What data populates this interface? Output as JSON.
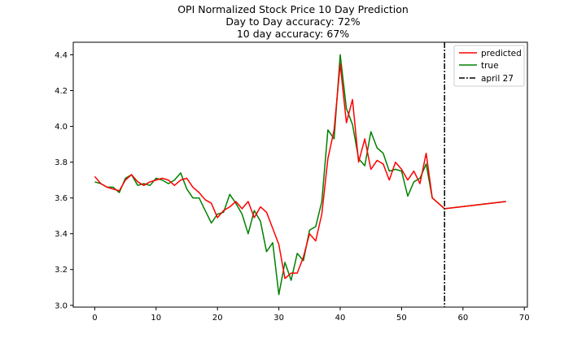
{
  "chart_data": {
    "type": "line",
    "title_lines": [
      "OPI Normalized Stock Price 10 Day Prediction",
      "Day to Day accuracy: 72%",
      "10 day accuracy: 67%"
    ],
    "xlim": [
      -3.5,
      70.5
    ],
    "ylim": [
      2.99,
      4.47
    ],
    "x_ticks": [
      0,
      10,
      20,
      30,
      40,
      50,
      60,
      70
    ],
    "y_ticks": [
      3.0,
      3.2,
      3.4,
      3.6,
      3.8,
      4.0,
      4.2,
      4.4
    ],
    "x_tick_labels": [
      "0",
      "10",
      "20",
      "30",
      "40",
      "50",
      "60",
      "70"
    ],
    "y_tick_labels": [
      "3.0",
      "3.2",
      "3.4",
      "3.6",
      "3.8",
      "4.0",
      "4.2",
      "4.4"
    ],
    "series": [
      {
        "name": "predicted",
        "color": "#ff0000",
        "x": [
          0,
          1,
          2,
          3,
          4,
          5,
          6,
          7,
          8,
          9,
          10,
          11,
          12,
          13,
          14,
          15,
          16,
          17,
          18,
          19,
          20,
          21,
          22,
          23,
          24,
          25,
          26,
          27,
          28,
          29,
          30,
          31,
          32,
          33,
          34,
          35,
          36,
          37,
          38,
          39,
          40,
          41,
          42,
          43,
          44,
          45,
          46,
          47,
          48,
          49,
          50,
          51,
          52,
          53,
          54,
          55,
          56,
          57,
          67
        ],
        "y": [
          3.72,
          3.68,
          3.66,
          3.65,
          3.64,
          3.7,
          3.73,
          3.69,
          3.67,
          3.69,
          3.7,
          3.71,
          3.7,
          3.67,
          3.7,
          3.71,
          3.66,
          3.63,
          3.59,
          3.57,
          3.49,
          3.53,
          3.55,
          3.58,
          3.54,
          3.58,
          3.49,
          3.55,
          3.52,
          3.43,
          3.34,
          3.15,
          3.18,
          3.18,
          3.27,
          3.4,
          3.36,
          3.51,
          3.82,
          3.98,
          4.35,
          4.02,
          4.15,
          3.8,
          3.93,
          3.76,
          3.81,
          3.79,
          3.7,
          3.8,
          3.76,
          3.7,
          3.75,
          3.68,
          3.85,
          3.6,
          3.57,
          3.54,
          3.58
        ]
      },
      {
        "name": "true",
        "color": "#008000",
        "x": [
          0,
          1,
          2,
          3,
          4,
          5,
          6,
          7,
          8,
          9,
          10,
          11,
          12,
          13,
          14,
          15,
          16,
          17,
          18,
          19,
          20,
          21,
          22,
          23,
          24,
          25,
          26,
          27,
          28,
          29,
          30,
          31,
          32,
          33,
          34,
          35,
          36,
          37,
          38,
          39,
          40,
          41,
          42,
          43,
          44,
          45,
          46,
          47,
          48,
          49,
          50,
          51,
          52,
          53,
          54,
          55,
          56,
          57,
          67
        ],
        "y": [
          3.69,
          3.68,
          3.66,
          3.66,
          3.63,
          3.71,
          3.73,
          3.67,
          3.68,
          3.67,
          3.71,
          3.7,
          3.68,
          3.7,
          3.74,
          3.65,
          3.6,
          3.6,
          3.53,
          3.46,
          3.51,
          3.52,
          3.62,
          3.57,
          3.51,
          3.4,
          3.53,
          3.47,
          3.3,
          3.35,
          3.06,
          3.24,
          3.14,
          3.29,
          3.25,
          3.42,
          3.44,
          3.58,
          3.98,
          3.93,
          4.4,
          4.1,
          4.01,
          3.82,
          3.78,
          3.97,
          3.88,
          3.85,
          3.75,
          3.76,
          3.75,
          3.61,
          3.69,
          3.71,
          3.79,
          3.6,
          3.57,
          3.54,
          3.58
        ]
      }
    ],
    "vline": {
      "x": 57,
      "label": "april 27",
      "color": "#000000",
      "style": "dash-dot"
    },
    "legend_position": "top-right",
    "grid": false
  }
}
